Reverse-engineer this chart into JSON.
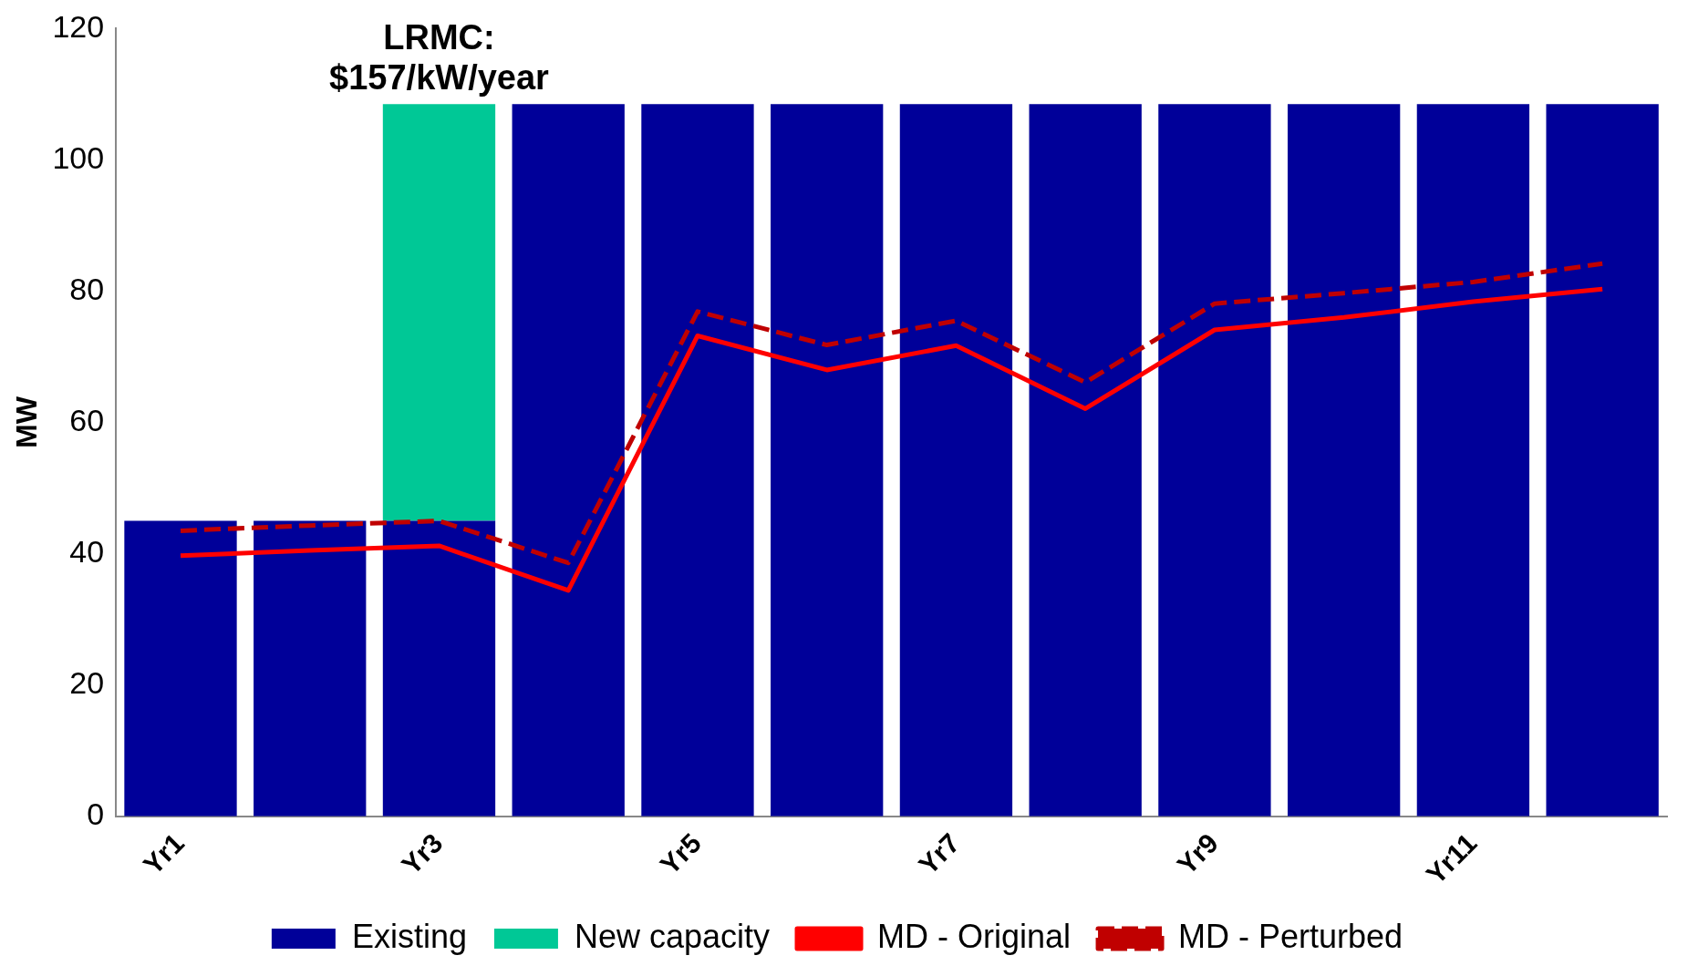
{
  "chart_data": {
    "type": "bar",
    "stacked": true,
    "ylabel": "MW",
    "categories": [
      "Yr1",
      null,
      "Yr3",
      null,
      "Yr5",
      null,
      "Yr7",
      null,
      "Yr9",
      null,
      "Yr11",
      null
    ],
    "ylim": [
      0,
      120
    ],
    "yticks": [
      0,
      20,
      40,
      60,
      80,
      100,
      120
    ],
    "grid": false,
    "legend": "bottom",
    "marker": "none",
    "annotations": [
      {
        "text": "LRMC:\n$157/kW/year",
        "x": "Yr3",
        "y": 108.5
      }
    ],
    "series": [
      {
        "name": "Existing",
        "color": "#000099",
        "values": [
          45,
          45,
          45,
          108.5,
          108.5,
          108.5,
          108.5,
          108.5,
          108.5,
          108.5,
          108.5,
          108.5
        ]
      },
      {
        "name": "New capacity",
        "color": "#00c896",
        "values": [
          null,
          null,
          63.5,
          null,
          null,
          null,
          null,
          null,
          null,
          null,
          null,
          null
        ]
      },
      {
        "name": "MD - Original",
        "type": "line",
        "line_style": "solid",
        "color": "#ff0000",
        "values": [
          39.7,
          40.5,
          41.2,
          34.4,
          73.2,
          68,
          71.7,
          62.1,
          74.1,
          76,
          78.4,
          80.3
        ]
      },
      {
        "name": "MD - Perturbed",
        "type": "line",
        "line_style": "dashed",
        "color": "#c00000",
        "values": [
          43.5,
          44.3,
          45,
          38.6,
          76.9,
          71.8,
          75.5,
          66.1,
          78.1,
          79.7,
          81.4,
          84.2
        ]
      }
    ]
  }
}
